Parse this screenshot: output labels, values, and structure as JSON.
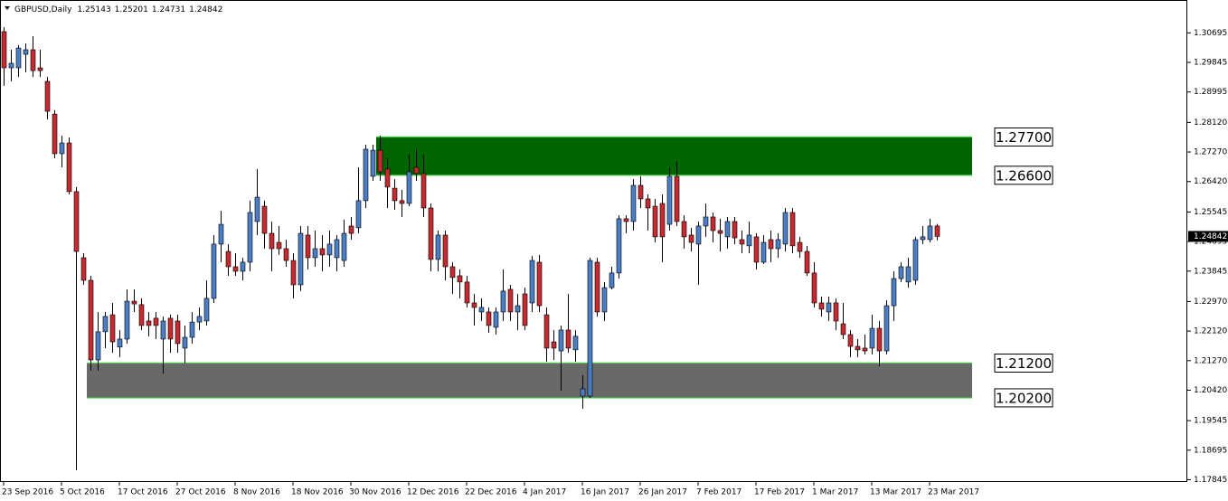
{
  "chart_data": {
    "type": "candlestick",
    "title": "GBPUSD,Daily",
    "categories": [
      "23 Sep 2016",
      null,
      null,
      null,
      null,
      null,
      null,
      null,
      "5 Oct 2016",
      null,
      null,
      null,
      null,
      null,
      null,
      null,
      "17 Oct 2016",
      null,
      null,
      null,
      null,
      null,
      null,
      null,
      "27 Oct 2016",
      null,
      null,
      null,
      null,
      null,
      null,
      null,
      "8 Nov 2016",
      null,
      null,
      null,
      null,
      null,
      null,
      null,
      "18 Nov 2016",
      null,
      null,
      null,
      null,
      null,
      null,
      null,
      "30 Nov 2016",
      null,
      null,
      null,
      null,
      null,
      null,
      null,
      "12 Dec 2016",
      null,
      null,
      null,
      null,
      null,
      null,
      null,
      "22 Dec 2016",
      null,
      null,
      null,
      null,
      null,
      null,
      null,
      "4 Jan 2017",
      null,
      null,
      null,
      null,
      null,
      null,
      null,
      "16 Jan 2017",
      null,
      null,
      null,
      null,
      null,
      null,
      null,
      "26 Jan 2017",
      null,
      null,
      null,
      null,
      null,
      null,
      null,
      "7 Feb 2017",
      null,
      null,
      null,
      null,
      null,
      null,
      null,
      "17 Feb 2017",
      null,
      null,
      null,
      null,
      null,
      null,
      null,
      "1 Mar 2017",
      null,
      null,
      null,
      null,
      null,
      null,
      null,
      "13 Mar 2017",
      null,
      null,
      null,
      null,
      null,
      null,
      null,
      "23 Mar 2017",
      null
    ],
    "open": [
      1.3073,
      1.2969,
      1.2969,
      1.3008,
      1.3021,
      1.2969,
      1.293,
      1.2836,
      1.2722,
      1.2753,
      1.2613,
      1.2423,
      1.2358,
      1.2129,
      1.221,
      1.2259,
      1.2166,
      1.2189,
      1.2298,
      1.2288,
      1.2241,
      1.2249,
      1.2189,
      1.2249,
      1.2241,
      1.2163,
      1.2194,
      1.2238,
      1.2241,
      1.2306,
      1.2462,
      1.2441,
      1.2397,
      1.2384,
      1.241,
      1.2527,
      1.2571,
      1.2493,
      1.2467,
      1.2449,
      1.2415,
      1.2345,
      1.2488,
      1.2423,
      1.2449,
      1.2431,
      1.2423,
      1.2415,
      1.2514,
      1.2509,
      1.2587,
      1.2657,
      1.2732,
      1.2678,
      1.2623,
      1.2587,
      1.2579,
      1.2683,
      1.2665,
      1.2566,
      1.2418,
      1.2488,
      1.2397,
      1.2371,
      1.2353,
      1.2293,
      1.2267,
      1.2267,
      1.2223,
      1.2267,
      1.2332,
      1.2267,
      1.2319,
      1.2293,
      1.241,
      1.2259,
      1.2181,
      1.2155,
      1.2215,
      1.2158,
      1.2025,
      1.2025,
      1.241,
      1.2267,
      1.2337,
      1.2379,
      1.2535,
      1.2527,
      1.2631,
      1.2592,
      1.2571,
      1.2579,
      1.2519,
      1.2657,
      1.2527,
      1.2488,
      1.2462,
      1.2514,
      1.254,
      1.2501,
      1.2483,
      1.2527,
      1.2475,
      1.2457,
      1.2483,
      1.241,
      1.2475,
      1.2449,
      1.2462,
      1.2553,
      1.2467,
      1.2441,
      1.2379,
      1.2293,
      1.2267,
      1.2293,
      1.2233,
      1.2202,
      1.2168,
      1.2163,
      1.2163,
      1.222,
      1.2155,
      1.2285,
      1.2363,
      1.2353,
      1.2358,
      1.2475,
      1.2475,
      1.25143
    ],
    "high": [
      1.3086,
      1.3021,
      1.3034,
      1.3039,
      1.306,
      1.3021,
      1.2943,
      1.2847,
      1.2774,
      1.2769,
      1.2626,
      1.2436,
      1.2371,
      1.2267,
      1.2267,
      1.2293,
      1.2215,
      1.2332,
      1.2332,
      1.2306,
      1.2267,
      1.2267,
      1.2254,
      1.2259,
      1.2259,
      1.2228,
      1.2267,
      1.228,
      1.2358,
      1.2488,
      1.2558,
      1.2462,
      1.2436,
      1.2423,
      1.2587,
      1.2678,
      1.2587,
      1.2527,
      1.2514,
      1.2475,
      1.2436,
      1.2514,
      1.2514,
      1.2501,
      1.2488,
      1.2501,
      1.2488,
      1.2532,
      1.254,
      1.2683,
      1.2748,
      1.2748,
      1.2774,
      1.2709,
      1.2649,
      1.2618,
      1.2722,
      1.2735,
      1.2722,
      1.2579,
      1.2501,
      1.2501,
      1.241,
      1.2389,
      1.2371,
      1.2319,
      1.2306,
      1.228,
      1.228,
      1.2389,
      1.2345,
      1.2319,
      1.2337,
      1.2428,
      1.2431,
      1.228,
      1.2215,
      1.2228,
      1.2319,
      1.2215,
      1.2085,
      1.2423,
      1.2423,
      1.2353,
      1.2397,
      1.2545,
      1.2545,
      1.2649,
      1.2657,
      1.2605,
      1.2592,
      1.2605,
      1.2683,
      1.2701,
      1.2545,
      1.2509,
      1.2527,
      1.2579,
      1.2553,
      1.2535,
      1.254,
      1.254,
      1.2501,
      1.2527,
      1.2493,
      1.2488,
      1.2501,
      1.2493,
      1.2566,
      1.2566,
      1.2483,
      1.2457,
      1.241,
      1.2311,
      1.2311,
      1.2306,
      1.2293,
      1.2215,
      1.2189,
      1.2202,
      1.2259,
      1.2241,
      1.2301,
      1.2384,
      1.241,
      1.2423,
      1.2483,
      1.2514,
      1.2535,
      1.25201
    ],
    "low": [
      1.2917,
      1.293,
      1.2943,
      1.2956,
      1.2943,
      1.2943,
      1.2821,
      1.2709,
      1.2683,
      1.2605,
      1.1812,
      1.2345,
      1.2098,
      1.2098,
      1.2163,
      1.215,
      1.2137,
      1.2176,
      1.2267,
      1.2215,
      1.2197,
      1.2189,
      1.209,
      1.215,
      1.215,
      1.2119,
      1.2176,
      1.2215,
      1.2228,
      1.2293,
      1.241,
      1.2371,
      1.2371,
      1.2358,
      1.2384,
      1.2488,
      1.2449,
      1.2384,
      1.2431,
      1.2397,
      1.2306,
      1.2327,
      1.2389,
      1.2397,
      1.2384,
      1.2397,
      1.2384,
      1.2397,
      1.2475,
      1.2493,
      1.2566,
      1.2644,
      1.2644,
      1.2566,
      1.2561,
      1.254,
      1.2571,
      1.2644,
      1.254,
      1.2384,
      1.2384,
      1.2358,
      1.2319,
      1.2306,
      1.228,
      1.2228,
      1.2241,
      1.2207,
      1.2202,
      1.2241,
      1.2241,
      1.2215,
      1.2215,
      1.2267,
      1.2267,
      1.2124,
      1.2129,
      1.2041,
      1.215,
      1.2124,
      1.1989,
      1.202,
      1.2254,
      1.2241,
      1.2332,
      1.2363,
      1.2493,
      1.2501,
      1.2566,
      1.2501,
      1.2467,
      1.241,
      1.2501,
      1.2514,
      1.2449,
      1.2441,
      1.2345,
      1.2483,
      1.2467,
      1.2441,
      1.2449,
      1.2462,
      1.2436,
      1.2436,
      1.2389,
      1.2405,
      1.241,
      1.2423,
      1.2441,
      1.2436,
      1.2423,
      1.2371,
      1.228,
      1.2254,
      1.2241,
      1.2215,
      1.2189,
      1.2137,
      1.2137,
      1.2145,
      1.2145,
      1.2111,
      1.2145,
      1.2241,
      1.2353,
      1.2337,
      1.2345,
      1.2462,
      1.2467,
      1.24731
    ],
    "close": [
      1.2969,
      1.2982,
      1.3026,
      1.3021,
      1.2961,
      1.2961,
      1.2844,
      1.2722,
      1.2753,
      1.2613,
      1.2441,
      1.2358,
      1.2129,
      1.221,
      1.2254,
      1.2181,
      1.2189,
      1.2298,
      1.229,
      1.2228,
      1.2228,
      1.2228,
      1.2241,
      1.2189,
      1.2176,
      1.2194,
      1.2238,
      1.2254,
      1.2306,
      1.2462,
      1.2519,
      1.2397,
      1.2384,
      1.241,
      1.2553,
      1.2597,
      1.2493,
      1.2449,
      1.2449,
      1.2415,
      1.2345,
      1.2493,
      1.2423,
      1.2449,
      1.2431,
      1.2462,
      1.2475,
      1.2493,
      1.2493,
      1.2587,
      1.2735,
      1.2732,
      1.267,
      1.2626,
      1.2587,
      1.2579,
      1.267,
      1.2665,
      1.2566,
      1.2418,
      1.2488,
      1.2397,
      1.2366,
      1.2353,
      1.2293,
      1.228,
      1.228,
      1.2228,
      1.2267,
      1.2327,
      1.2267,
      1.2285,
      1.2228,
      1.2415,
      1.2285,
      1.2163,
      1.2163,
      1.2215,
      1.2163,
      1.2197,
      1.2046,
      1.2415,
      1.2267,
      1.2337,
      1.2379,
      1.2535,
      1.2527,
      1.2631,
      1.2592,
      1.2566,
      1.2483,
      1.2483,
      1.2657,
      1.2527,
      1.2483,
      1.2467,
      1.2514,
      1.254,
      1.2501,
      1.2493,
      1.2527,
      1.248,
      1.2462,
      1.2488,
      1.241,
      1.2467,
      1.2449,
      1.2475,
      1.2553,
      1.2457,
      1.2441,
      1.2379,
      1.2293,
      1.2275,
      1.2293,
      1.2241,
      1.2202,
      1.2168,
      1.2158,
      1.2155,
      1.222,
      1.2155,
      1.2285,
      1.2363,
      1.2397,
      1.2397,
      1.2475,
      1.2483,
      1.2514,
      1.24842
    ],
    "up_color": "#4a7ec4",
    "down_color": "#c42a2f",
    "ylim": [
      1.1778,
      1.3164
    ],
    "yticks": [
      1.30695,
      1.29845,
      1.28995,
      {
        "value": 1.2812,
        "label": "1.28120"
      },
      {
        "value": 1.2727,
        "label": "1.27270"
      },
      {
        "value": 1.2642,
        "label": "1.26420"
      },
      1.25545,
      1.24695,
      1.23845,
      {
        "value": 1.2297,
        "label": "1.22970"
      },
      {
        "value": 1.2212,
        "label": "1.22120"
      },
      {
        "value": 1.2127,
        "label": "1.21270"
      },
      {
        "value": 1.2042,
        "label": "1.20420"
      },
      1.19545,
      1.18695,
      1.17845
    ],
    "grid": false,
    "zones": [
      {
        "color": "#006400",
        "from": 52,
        "top": {
          "value": 1.277,
          "label": "1.27700"
        },
        "bottom": {
          "value": 1.266,
          "label": "1.26600"
        }
      },
      {
        "color": "#696969",
        "from": 12,
        "top": {
          "value": 1.212,
          "label": "1.21200"
        },
        "bottom": {
          "value": 1.202,
          "label": "1.20200"
        }
      }
    ]
  }
}
